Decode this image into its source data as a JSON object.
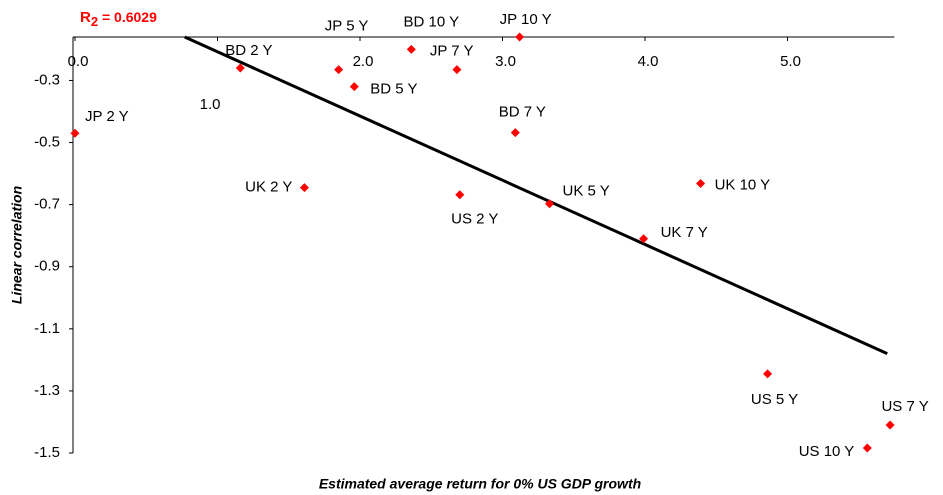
{
  "chart_data": {
    "type": "scatter",
    "x_label": "Estimated average return for 0% US GDP growth",
    "y_label": "Linear correlation",
    "annotation_parts": [
      "R",
      "2",
      " = 0.6029"
    ],
    "annotation_color": "#ff0000",
    "color": "#ff0000",
    "xlim": [
      0,
      5.75
    ],
    "ylim": [
      -1.5,
      -0.16
    ],
    "xticks": [
      {
        "value": 0,
        "label": "0.0"
      },
      {
        "value": 1,
        "label": "1.0"
      },
      {
        "value": 2,
        "label": "2.0"
      },
      {
        "value": 3,
        "label": "3.0"
      },
      {
        "value": 4,
        "label": "4.0"
      },
      {
        "value": 5,
        "label": "5.0"
      }
    ],
    "yticks": [
      -0.3,
      -0.5,
      -0.7,
      -0.9,
      -1.1,
      -1.3,
      -1.5
    ],
    "labels": [
      "JP 2 Y",
      "BD 2 Y",
      "UK 2 Y",
      "JP 5 Y",
      "BD 5 Y",
      "BD 10 Y",
      "JP 7 Y",
      "US 2 Y",
      "BD 7 Y",
      "JP 10 Y",
      "UK 5 Y",
      "UK 7 Y",
      "UK 10 Y",
      "US 5 Y",
      "US 7 Y",
      "US 10 Y"
    ],
    "x": [
      0.0,
      1.16,
      1.61,
      1.85,
      1.96,
      2.36,
      2.68,
      2.7,
      3.09,
      3.12,
      3.33,
      3.99,
      4.39,
      4.86,
      5.72,
      5.56
    ],
    "y": [
      -0.47,
      -0.26,
      -0.645,
      -0.265,
      -0.32,
      -0.2,
      -0.265,
      -0.668,
      -0.468,
      -0.16,
      -0.697,
      -0.81,
      -0.632,
      -1.245,
      -1.41,
      -1.484
    ],
    "trendline": {
      "color": "#000000",
      "x": [
        0.77,
        5.7
      ],
      "y": [
        -0.16,
        -1.18
      ]
    }
  }
}
